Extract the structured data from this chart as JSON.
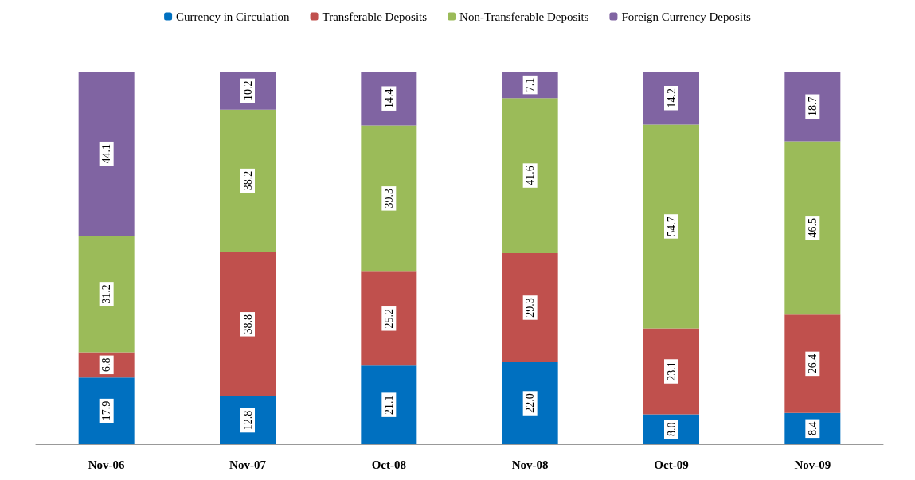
{
  "chart_data": {
    "type": "bar",
    "stacked": true,
    "categories": [
      "Nov-06",
      "Nov-07",
      "Oct-08",
      "Nov-08",
      "Oct-09",
      "Nov-09"
    ],
    "series": [
      {
        "name": "Currency in Circulation",
        "color": "#0070c0",
        "values": [
          17.9,
          12.8,
          21.1,
          22.0,
          8.0,
          8.4
        ],
        "value_labels": [
          "17.9",
          "12.8",
          "21.1",
          "22.0",
          "8.0",
          "8.4"
        ]
      },
      {
        "name": "Transferable Deposits",
        "color": "#c0504d",
        "values": [
          6.8,
          38.8,
          25.2,
          29.3,
          23.1,
          26.4
        ],
        "value_labels": [
          "6.8",
          "38.8",
          "25.2",
          "29.3",
          "23.1",
          "26.4"
        ]
      },
      {
        "name": "Non-Transferable Deposits",
        "color": "#9bbb59",
        "values": [
          31.2,
          38.2,
          39.3,
          41.6,
          54.7,
          46.5
        ],
        "value_labels": [
          "31.2",
          "38.2",
          "39.3",
          "41.6",
          "54.7",
          "46.5"
        ]
      },
      {
        "name": "Foreign Currency Deposits",
        "color": "#8064a2",
        "values": [
          44.1,
          10.2,
          14.4,
          7.1,
          14.2,
          18.7
        ],
        "value_labels": [
          "44.1",
          "10.2",
          "14.4",
          "7.1",
          "14.2",
          "18.7"
        ]
      }
    ],
    "ylim": [
      0,
      100
    ],
    "tick_labels": "x",
    "legend": "top",
    "grid": false
  }
}
